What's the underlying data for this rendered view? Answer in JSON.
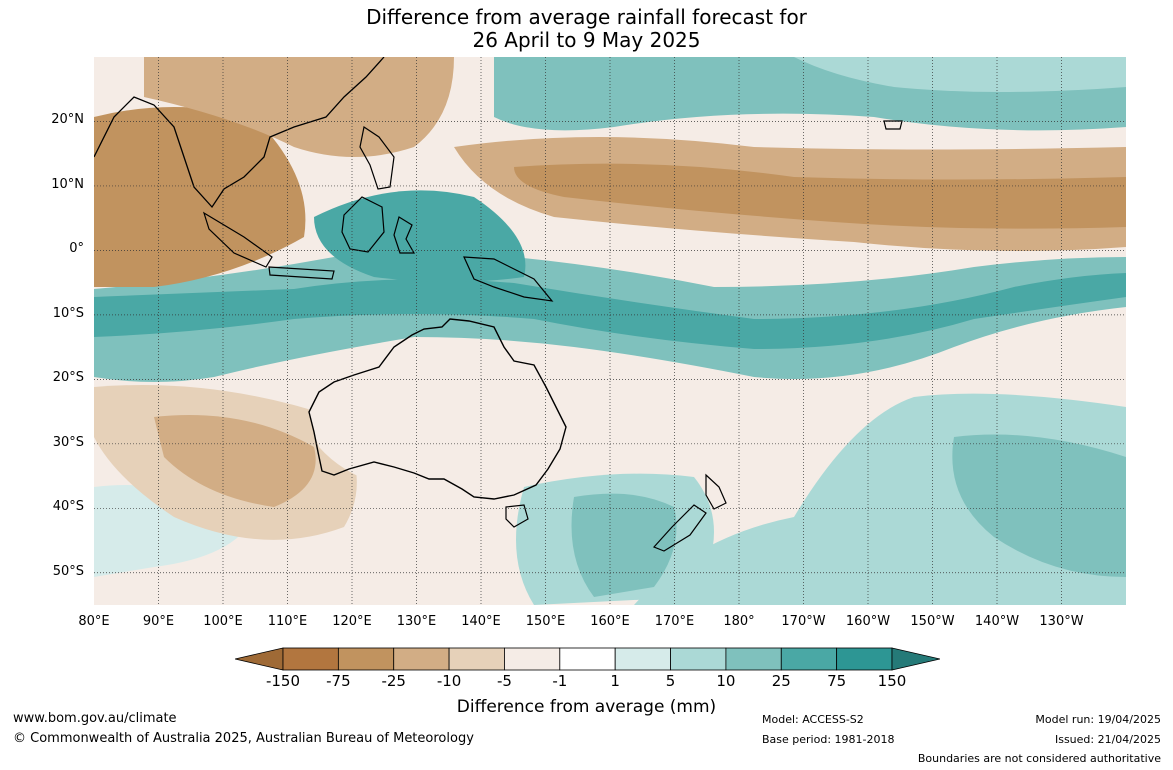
{
  "title": {
    "line1": "Difference from average rainfall forecast for",
    "line2": "26 April to 9 May 2025"
  },
  "map": {
    "lat_labels": [
      "20°N",
      "10°N",
      "0°",
      "10°S",
      "20°S",
      "30°S",
      "40°S",
      "50°S"
    ],
    "lon_labels": [
      "80°E",
      "90°E",
      "100°E",
      "110°E",
      "120°E",
      "130°E",
      "140°E",
      "150°E",
      "160°E",
      "170°E",
      "180°",
      "170°W",
      "160°W",
      "150°W",
      "140°W",
      "130°W"
    ],
    "lon_range": [
      80,
      240
    ],
    "lat_range": [
      -55,
      30
    ]
  },
  "legend": {
    "title": "Difference from average (mm)",
    "ticks": [
      "-150",
      "-75",
      "-25",
      "-10",
      "-5",
      "-1",
      "1",
      "5",
      "10",
      "25",
      "75",
      "150"
    ],
    "colors": [
      "#9f6a36",
      "#b2763f",
      "#c1935f",
      "#d2ad85",
      "#e6d1b9",
      "#f5ece6",
      "#ffffff",
      "#d6ebea",
      "#abd9d6",
      "#7fc1bd",
      "#4aa8a5",
      "#2d9694",
      "#257a78"
    ]
  },
  "footer": {
    "website": "www.bom.gov.au/climate",
    "copyright": "© Commonwealth of Australia 2025, Australian Bureau of Meteorology",
    "model": "Model: ACCESS-S2",
    "base_period": "Base period: 1981-2018",
    "model_run": "Model run: 19/04/2025",
    "issued": "Issued: 21/04/2025",
    "boundaries": "Boundaries are not considered authoritative"
  }
}
